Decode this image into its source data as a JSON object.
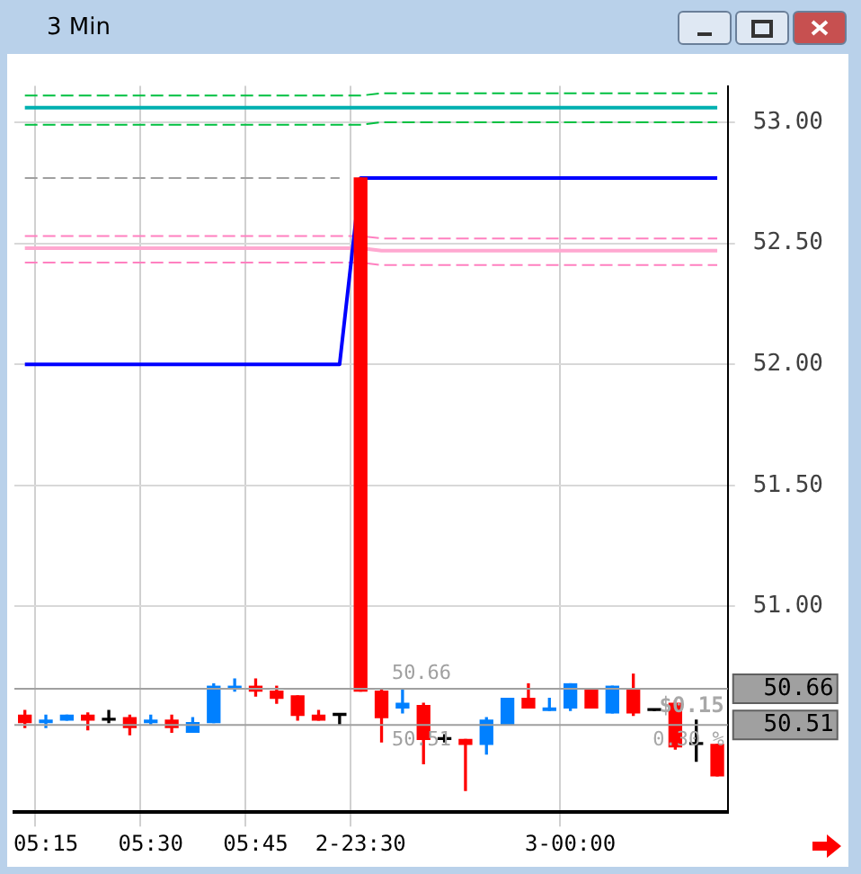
{
  "chart_data": {
    "type": "candlestick",
    "title": "3 Min",
    "categories": [
      null,
      "05:15",
      null,
      null,
      null,
      null,
      "05:30",
      null,
      null,
      null,
      null,
      "05:45",
      null,
      null,
      null,
      null,
      "2-23:30",
      null,
      null,
      null,
      null,
      null,
      null,
      null,
      null,
      null,
      "3-00:00",
      null,
      null,
      null,
      null,
      null,
      null,
      null
    ],
    "ohlc": [
      [
        50.55,
        50.57,
        50.5,
        50.52
      ],
      [
        50.52,
        50.55,
        50.5,
        50.53
      ],
      [
        50.53,
        50.55,
        50.53,
        50.55
      ],
      [
        50.55,
        50.56,
        50.49,
        50.53
      ],
      [
        50.53,
        50.57,
        50.52,
        50.53
      ],
      [
        50.54,
        50.55,
        50.47,
        50.5
      ],
      [
        50.52,
        50.55,
        50.51,
        50.53
      ],
      [
        50.53,
        50.55,
        50.48,
        50.5
      ],
      [
        50.48,
        50.54,
        50.48,
        50.52
      ],
      [
        50.52,
        50.68,
        50.52,
        50.67
      ],
      [
        50.66,
        50.7,
        50.65,
        50.67
      ],
      [
        50.67,
        50.7,
        50.63,
        50.65
      ],
      [
        50.65,
        50.67,
        50.6,
        50.62
      ],
      [
        50.63,
        50.63,
        50.53,
        50.55
      ],
      [
        50.55,
        50.57,
        50.53,
        50.53
      ],
      [
        50.55,
        50.55,
        50.51,
        50.55
      ],
      [
        52.77,
        52.77,
        50.65,
        50.65
      ],
      [
        50.65,
        50.66,
        50.44,
        50.54
      ],
      [
        50.58,
        50.66,
        50.56,
        50.6
      ],
      [
        50.59,
        50.6,
        50.35,
        50.45
      ],
      [
        50.45,
        50.47,
        50.44,
        50.45
      ],
      [
        50.45,
        50.45,
        50.24,
        50.43
      ],
      [
        50.43,
        50.54,
        50.39,
        50.53
      ],
      [
        50.51,
        50.62,
        50.51,
        50.62
      ],
      [
        50.62,
        50.68,
        50.58,
        50.58
      ],
      [
        50.57,
        50.62,
        50.57,
        50.58
      ],
      [
        50.58,
        50.68,
        50.57,
        50.68
      ],
      [
        50.66,
        50.66,
        50.58,
        50.58
      ],
      [
        50.56,
        50.67,
        50.56,
        50.67
      ],
      [
        50.66,
        50.72,
        50.55,
        50.56
      ],
      [
        50.57,
        50.57,
        50.57,
        50.57
      ],
      [
        50.6,
        50.61,
        50.41,
        50.42
      ],
      [
        50.43,
        50.53,
        50.36,
        50.43
      ],
      [
        50.43,
        50.43,
        50.3,
        50.3
      ]
    ],
    "colors": [
      "#ff0000",
      "#0080ff",
      "#0080ff",
      "#ff0000",
      "#000000",
      "#ff0000",
      "#0080ff",
      "#ff0000",
      "#0080ff",
      "#0080ff",
      "#0080ff",
      "#ff0000",
      "#ff0000",
      "#ff0000",
      "#ff0000",
      "#000000",
      "#ff0000",
      "#ff0000",
      "#0080ff",
      "#ff0000",
      "#000000",
      "#ff0000",
      "#0080ff",
      "#0080ff",
      "#ff0000",
      "#0080ff",
      "#0080ff",
      "#ff0000",
      "#0080ff",
      "#ff0000",
      "#000000",
      "#ff0000",
      "#000000",
      "#ff0000"
    ],
    "series": [
      {
        "type": "line",
        "color": "#0000ff",
        "line_style": "solid",
        "values": [
          52.0,
          52.0,
          52.0,
          52.0,
          52.0,
          52.0,
          52.0,
          52.0,
          52.0,
          52.0,
          52.0,
          52.0,
          52.0,
          52.0,
          52.0,
          52.0,
          52.77,
          52.77,
          52.77,
          52.77,
          52.77,
          52.77,
          52.77,
          52.77,
          52.77,
          52.77,
          52.77,
          52.77,
          52.77,
          52.77,
          52.77,
          52.77,
          52.77,
          52.77
        ]
      },
      {
        "type": "line",
        "color": "#00c040",
        "line_style": "dashed",
        "values": [
          53.11,
          53.11,
          53.11,
          53.11,
          53.11,
          53.11,
          53.11,
          53.11,
          53.11,
          53.11,
          53.11,
          53.11,
          53.11,
          53.11,
          53.11,
          53.11,
          53.11,
          53.12,
          53.12,
          53.12,
          53.12,
          53.12,
          53.12,
          53.12,
          53.12,
          53.12,
          53.12,
          53.12,
          53.12,
          53.12,
          53.12,
          53.12,
          53.12,
          53.12
        ]
      },
      {
        "type": "line",
        "color": "#00b0b0",
        "line_style": "solid",
        "values": [
          53.06,
          53.06,
          53.06,
          53.06,
          53.06,
          53.06,
          53.06,
          53.06,
          53.06,
          53.06,
          53.06,
          53.06,
          53.06,
          53.06,
          53.06,
          53.06,
          53.06,
          53.06,
          53.06,
          53.06,
          53.06,
          53.06,
          53.06,
          53.06,
          53.06,
          53.06,
          53.06,
          53.06,
          53.06,
          53.06,
          53.06,
          53.06,
          53.06,
          53.06
        ]
      },
      {
        "type": "line",
        "color": "#00c040",
        "line_style": "dashed",
        "values": [
          52.99,
          52.99,
          52.99,
          52.99,
          52.99,
          52.99,
          52.99,
          52.99,
          52.99,
          52.99,
          52.99,
          52.99,
          52.99,
          52.99,
          52.99,
          52.99,
          52.99,
          53.0,
          53.0,
          53.0,
          53.0,
          53.0,
          53.0,
          53.0,
          53.0,
          53.0,
          53.0,
          53.0,
          53.0,
          53.0,
          53.0,
          53.0,
          53.0,
          53.0
        ]
      },
      {
        "type": "line",
        "color": "#a0a0a0",
        "line_style": "dashed",
        "values": [
          52.77,
          52.77,
          52.77,
          52.77,
          52.77,
          52.77,
          52.77,
          52.77,
          52.77,
          52.77,
          52.77,
          52.77,
          52.77,
          52.77,
          52.77,
          52.77,
          null,
          null,
          null,
          null,
          null,
          null,
          null,
          null,
          null,
          null,
          null,
          null,
          null,
          null,
          null,
          null,
          null,
          null
        ]
      },
      {
        "type": "line",
        "color": "#ff80c0",
        "line_style": "dashed",
        "values": [
          52.53,
          52.53,
          52.53,
          52.53,
          52.53,
          52.53,
          52.53,
          52.53,
          52.53,
          52.53,
          52.53,
          52.53,
          52.53,
          52.53,
          52.53,
          52.53,
          52.53,
          52.52,
          52.52,
          52.52,
          52.52,
          52.52,
          52.52,
          52.52,
          52.52,
          52.52,
          52.52,
          52.52,
          52.52,
          52.52,
          52.52,
          52.52,
          52.52,
          52.52
        ]
      },
      {
        "type": "line",
        "color": "#ffa8d0",
        "line_style": "solid",
        "values": [
          52.48,
          52.48,
          52.48,
          52.48,
          52.48,
          52.48,
          52.48,
          52.48,
          52.48,
          52.48,
          52.48,
          52.48,
          52.48,
          52.48,
          52.48,
          52.48,
          52.48,
          52.47,
          52.47,
          52.47,
          52.47,
          52.47,
          52.47,
          52.47,
          52.47,
          52.47,
          52.47,
          52.47,
          52.47,
          52.47,
          52.47,
          52.47,
          52.47,
          52.47
        ]
      },
      {
        "type": "line",
        "color": "#ff80c0",
        "line_style": "dashed",
        "values": [
          52.42,
          52.42,
          52.42,
          52.42,
          52.42,
          52.42,
          52.42,
          52.42,
          52.42,
          52.42,
          52.42,
          52.42,
          52.42,
          52.42,
          52.42,
          52.42,
          52.42,
          52.41,
          52.41,
          52.41,
          52.41,
          52.41,
          52.41,
          52.41,
          52.41,
          52.41,
          52.41,
          52.41,
          52.41,
          52.41,
          52.41,
          52.41,
          52.41,
          52.41
        ]
      }
    ],
    "ylim": [
      50.15,
      53.15
    ],
    "yticks": [
      {
        "value": 51,
        "label": "51.00"
      },
      {
        "value": 51.5,
        "label": "51.50"
      },
      {
        "value": 52,
        "label": "52.00"
      },
      {
        "value": 52.5,
        "label": "52.50"
      },
      {
        "value": 53,
        "label": "53.00"
      }
    ],
    "ref_lines": [
      {
        "axis": "y",
        "value": 50.66,
        "label": "50.66",
        "color": "#a0a0a0"
      },
      {
        "axis": "y",
        "value": 50.51,
        "label": "50.51",
        "color": "#a0a0a0"
      }
    ],
    "annotations": [
      "$0.15",
      "0.30 %"
    ],
    "grid": true,
    "legend": false
  }
}
